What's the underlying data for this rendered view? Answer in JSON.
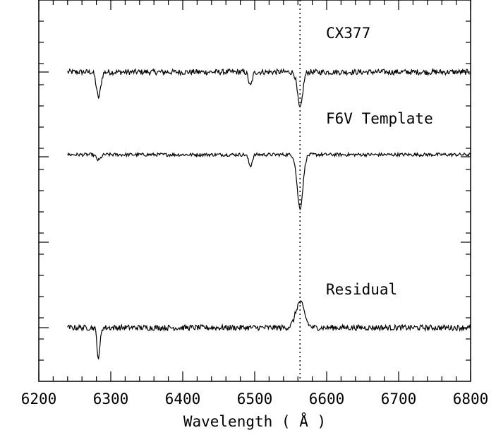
{
  "chart_data": {
    "type": "line",
    "title": "",
    "xlabel": "Wavelength ( Å )",
    "ylabel": "",
    "xlim": [
      6200,
      6800
    ],
    "x_ticks": [
      6200,
      6300,
      6400,
      6500,
      6600,
      6700,
      6800
    ],
    "x_tick_labels": [
      "6200",
      "6300",
      "6400",
      "6500",
      "6600",
      "6700",
      "6800"
    ],
    "y_axis_numbered": false,
    "grid": false,
    "reference_line": {
      "x": 6563,
      "style": "dotted"
    },
    "series": [
      {
        "name": "CX377",
        "x_range": [
          6240,
          6800
        ],
        "baseline": 1.0,
        "noise": 0.05,
        "features": [
          {
            "center": 6283,
            "depth": 0.45,
            "width": 3
          },
          {
            "center": 6494,
            "depth": 0.25,
            "width": 2.5
          },
          {
            "center": 6563,
            "depth": 0.65,
            "width": 3.5
          }
        ]
      },
      {
        "name": "F6V Template",
        "x_range": [
          6240,
          6800
        ],
        "baseline": 1.0,
        "noise": 0.03,
        "features": [
          {
            "center": 6283,
            "depth": 0.1,
            "width": 3
          },
          {
            "center": 6494,
            "depth": 0.2,
            "width": 2.5
          },
          {
            "center": 6563,
            "depth": 0.95,
            "width": 4
          }
        ]
      },
      {
        "name": "Residual",
        "x_range": [
          6240,
          6800
        ],
        "baseline": 1.0,
        "noise": 0.05,
        "features": [
          {
            "center": 6283,
            "depth": 0.55,
            "width": 2
          },
          {
            "center": 6563,
            "depth": -0.45,
            "width": 6
          }
        ]
      }
    ]
  }
}
